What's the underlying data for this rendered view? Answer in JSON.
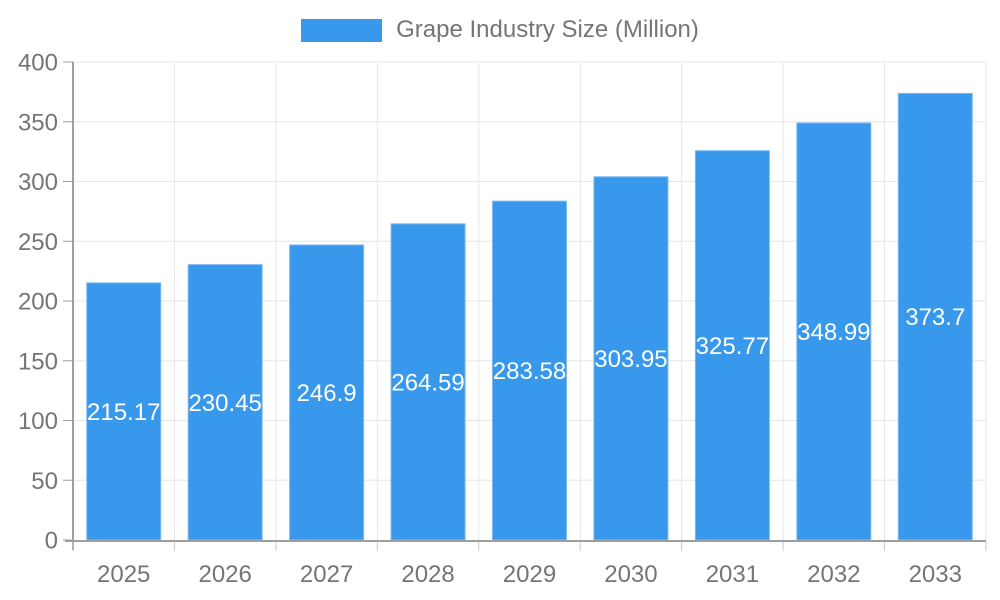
{
  "legend": {
    "label": "Grape Industry Size (Million)",
    "swatch_color": "#3898EC"
  },
  "chart_data": {
    "type": "bar",
    "title": "Grape Industry Size (Million)",
    "categories": [
      "2025",
      "2026",
      "2027",
      "2028",
      "2029",
      "2030",
      "2031",
      "2032",
      "2033"
    ],
    "series": [
      {
        "name": "Grape Industry Size (Million)",
        "values": [
          215.17,
          230.45,
          246.9,
          264.59,
          283.58,
          303.95,
          325.77,
          348.99,
          373.7
        ]
      }
    ],
    "xlabel": "",
    "ylabel": "",
    "ylim": [
      0,
      400
    ],
    "ytick_interval": 50,
    "yticks": [
      0,
      50,
      100,
      150,
      200,
      250,
      300,
      350,
      400
    ],
    "grid": "both",
    "legend_position": "top",
    "value_labels": "inside-center",
    "colors": {
      "bar_fill": "#3898EC",
      "bar_stroke": "#7DB9F2",
      "value_label": "#FFFFFF",
      "axis_line": "#9E9E9E",
      "grid_line": "#E6E6E6",
      "tick_line": "#C9C9C9",
      "tick_label": "#757575"
    }
  }
}
